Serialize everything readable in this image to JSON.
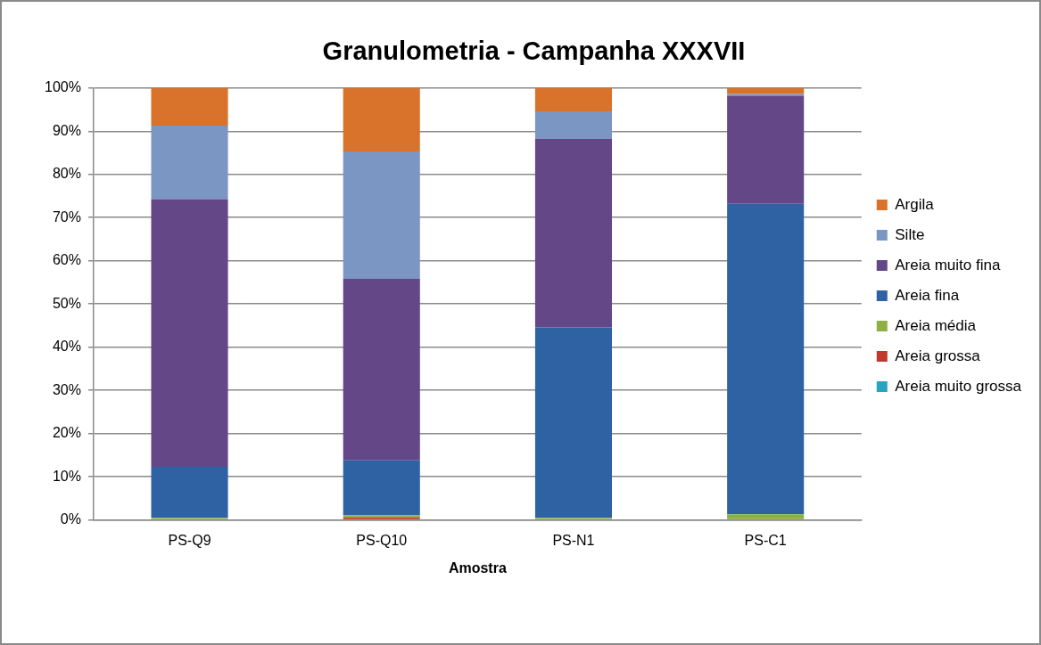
{
  "chart_data": {
    "type": "bar",
    "title": "Granulometria - Campanha XXXVII",
    "xlabel": "Amostra",
    "categories": [
      "PS-Q9",
      "PS-Q10",
      "PS-N1",
      "PS-C1"
    ],
    "stacked": true,
    "series": [
      {
        "name": "Areia muito grossa",
        "color": "#2aa3c0",
        "values": [
          0,
          0,
          0,
          0
        ]
      },
      {
        "name": "Areia grossa",
        "color": "#c0392b",
        "values": [
          0,
          0.6,
          0,
          0
        ]
      },
      {
        "name": "Areia média",
        "color": "#8cb043",
        "values": [
          0.5,
          0.5,
          0.5,
          1.3
        ]
      },
      {
        "name": "Areia fina",
        "color": "#2f62a3",
        "values": [
          11.8,
          12.7,
          44.1,
          71.9
        ]
      },
      {
        "name": "Areia muito fina",
        "color": "#634787",
        "values": [
          62,
          42,
          43.6,
          25
        ]
      },
      {
        "name": "Silte",
        "color": "#7b96c2",
        "values": [
          17,
          29.5,
          6.4,
          0.4
        ]
      },
      {
        "name": "Argila",
        "color": "#d9722a",
        "values": [
          8.7,
          14.7,
          5.4,
          1.4
        ]
      }
    ],
    "ylim": [
      0,
      100
    ],
    "yticks": [
      {
        "value": 0,
        "label": "0%"
      },
      {
        "value": 10,
        "label": "10%"
      },
      {
        "value": 20,
        "label": "20%"
      },
      {
        "value": 30,
        "label": "30%"
      },
      {
        "value": 40,
        "label": "40%"
      },
      {
        "value": 50,
        "label": "50%"
      },
      {
        "value": 60,
        "label": "60%"
      },
      {
        "value": 70,
        "label": "70%"
      },
      {
        "value": 80,
        "label": "80%"
      },
      {
        "value": 90,
        "label": "90%"
      },
      {
        "value": 100,
        "label": "100%"
      }
    ],
    "grid": "y",
    "legend": "right"
  }
}
